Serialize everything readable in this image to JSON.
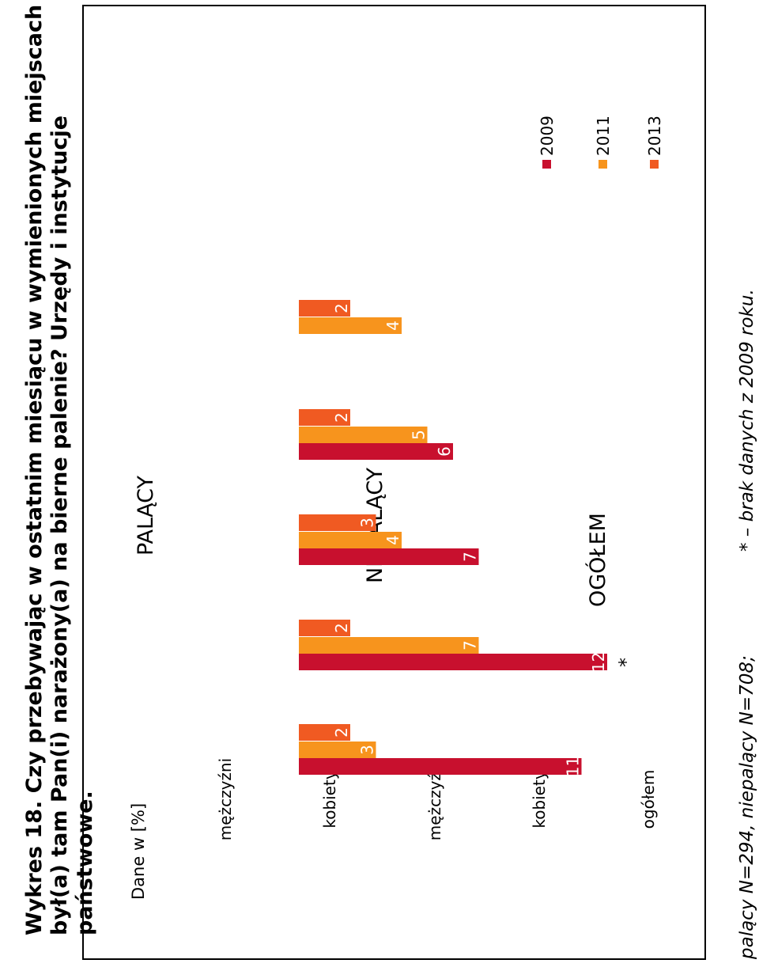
{
  "title": "Wykres 18. Czy przebywając w ostatnim miesiącu w wymienionych miejscach był(a) tam Pan(i) narażony(a) na bierne palenie? Urzędy i instytucje państwowe.",
  "title_lines": [
    "Wykres 18. Czy przebywając w ostatnim miesiącu w wymienionych miejscach",
    "był(a) tam Pan(i) narażony(a) na bierne palenie? Urzędy i instytucje",
    "państwowe."
  ],
  "footnote": {
    "sample": "palący N=294, niepalący N=708;",
    "note": "* – brak danych z 2009 roku."
  },
  "colors": {
    "2009": "#c8102e",
    "2011": "#f7941d",
    "2013": "#f05a22"
  },
  "chart_data": {
    "type": "bar",
    "units_label": "Dane w [%]",
    "groups": [
      {
        "label": "PALĄCY",
        "categories": [
          "mężczyźni",
          "kobiety"
        ]
      },
      {
        "label": "NIEPALĄCY",
        "categories": [
          "mężczyźni",
          "kobiety"
        ]
      },
      {
        "label": "OGÓŁEM",
        "categories": [
          "ogółem"
        ]
      }
    ],
    "categories": [
      "mężczyźni",
      "kobiety",
      "mężczyźni",
      "kobiety",
      "ogółem"
    ],
    "series": [
      {
        "name": "2009",
        "values": [
          11,
          12,
          7,
          6,
          null
        ]
      },
      {
        "name": "2011",
        "values": [
          3,
          7,
          4,
          5,
          4
        ]
      },
      {
        "name": "2013",
        "values": [
          2,
          2,
          3,
          2,
          2
        ]
      }
    ],
    "missing_marker": "*",
    "ylim": [
      0,
      12
    ],
    "legend": "top-right",
    "grid": false,
    "orientation": "rotated 90° counter-clockwise"
  }
}
